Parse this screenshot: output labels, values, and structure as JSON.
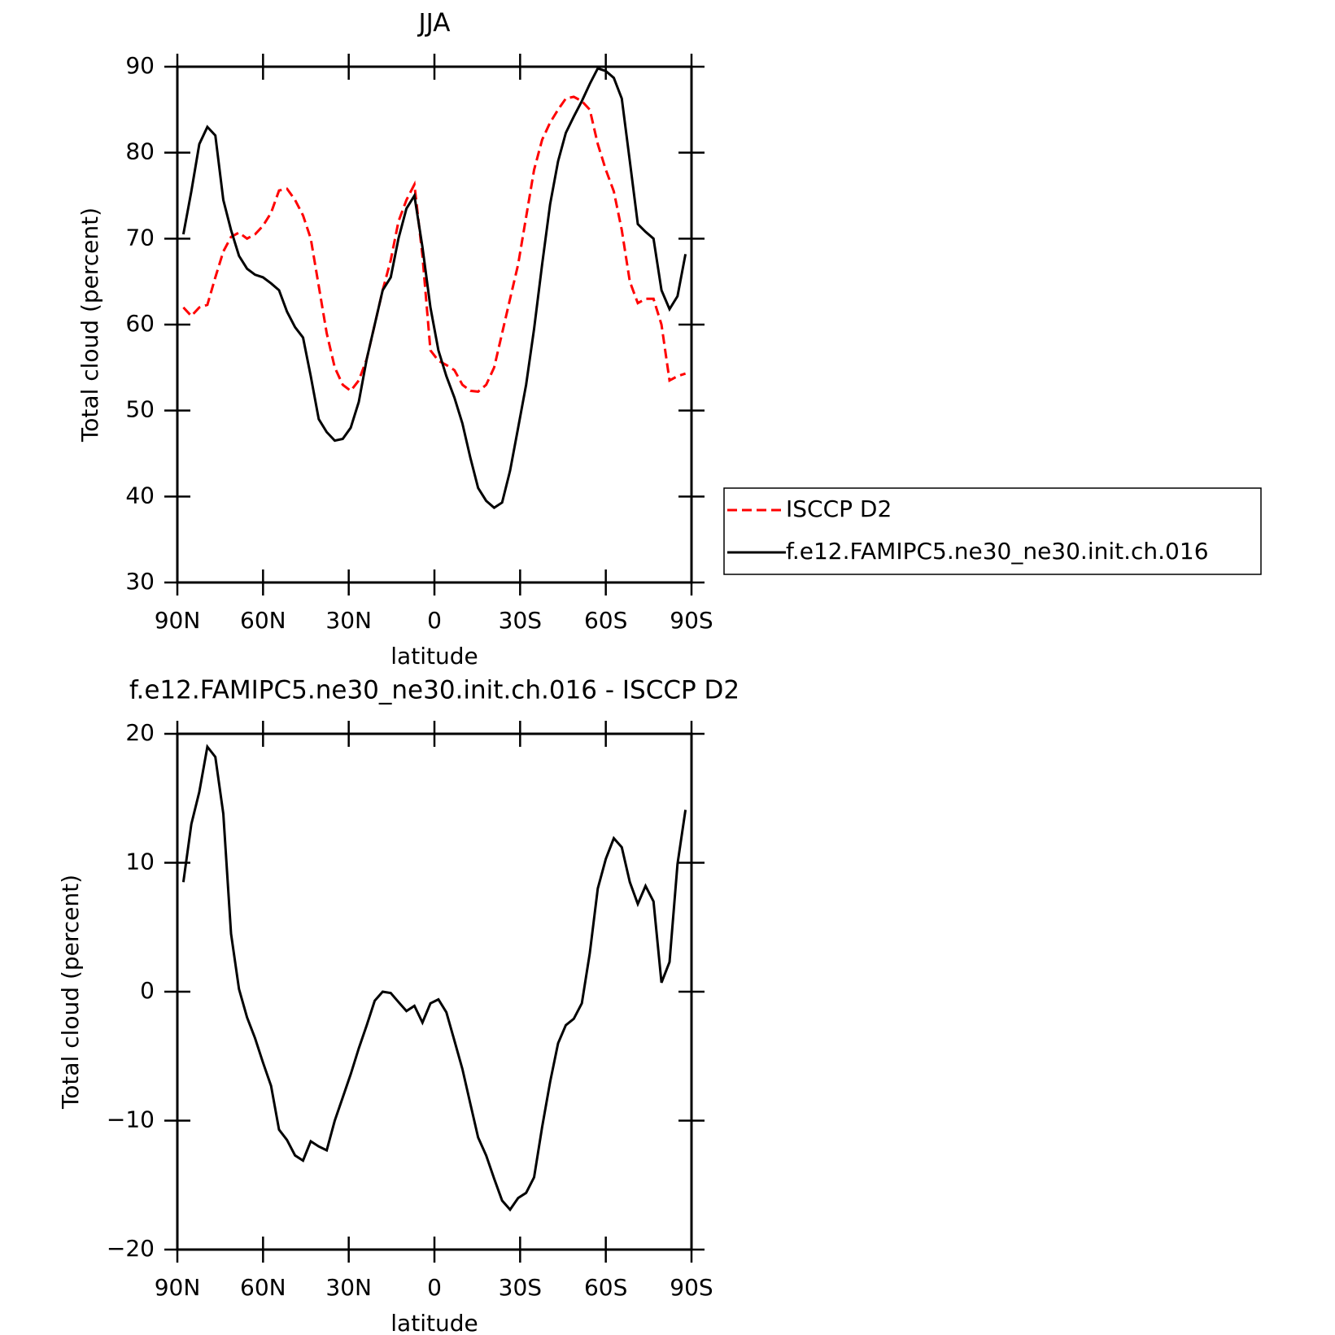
{
  "chart_data": [
    {
      "type": "line",
      "title": "JJA",
      "xlabel": "latitude",
      "ylabel": "Total cloud (percent)",
      "x": [
        87.9,
        85.1,
        82.3,
        79.5,
        76.7,
        73.9,
        71.2,
        68.4,
        65.6,
        62.8,
        60.0,
        57.2,
        54.4,
        51.6,
        48.8,
        46.0,
        43.3,
        40.5,
        37.7,
        34.9,
        32.1,
        29.3,
        26.5,
        23.7,
        20.9,
        18.1,
        15.3,
        12.6,
        9.8,
        7.0,
        4.2,
        1.4,
        -1.4,
        -4.2,
        -7.0,
        -9.8,
        -12.6,
        -15.3,
        -18.1,
        -20.9,
        -23.7,
        -26.5,
        -29.3,
        -32.1,
        -34.9,
        -37.7,
        -40.5,
        -43.3,
        -46.0,
        -48.8,
        -51.6,
        -54.4,
        -57.2,
        -60.0,
        -62.8,
        -65.6,
        -68.4,
        -71.2,
        -73.9,
        -76.7,
        -79.5,
        -82.3,
        -85.1,
        -87.9
      ],
      "series": [
        {
          "name": "ISCCP D2",
          "color": "#ff0000",
          "dash": true,
          "values": [
            62,
            61,
            62,
            62.3,
            65.5,
            68.5,
            70.2,
            70.7,
            70,
            70.5,
            71.5,
            73,
            75.6,
            75.8,
            74.5,
            72.7,
            70,
            64.5,
            59,
            55,
            53,
            52.3,
            53.5,
            56,
            60,
            64,
            67.5,
            72,
            74.5,
            76.3,
            68,
            57,
            55.8,
            55.3,
            54.7,
            53,
            52.3,
            52.2,
            53,
            55,
            59,
            63,
            67,
            72.5,
            78,
            81.5,
            83.5,
            85,
            86.3,
            86.5,
            86,
            85,
            81,
            78,
            75.5,
            71,
            65,
            62.5,
            63,
            63,
            60,
            53.5,
            54,
            54.3
          ]
        },
        {
          "name": "f.e12.FAMIPC5.ne30_ne30.init.ch.016",
          "color": "#000000",
          "dash": false,
          "values": [
            70.5,
            75.5,
            81,
            83,
            82,
            74.5,
            71,
            68,
            66.5,
            65.8,
            65.5,
            64.8,
            64,
            61.5,
            59.7,
            58.5,
            54,
            49,
            47.5,
            46.5,
            46.7,
            48,
            51,
            56,
            60,
            64,
            65.5,
            70,
            73.5,
            75,
            69,
            62,
            57,
            54,
            51.5,
            48.5,
            44.5,
            41,
            39.5,
            38.7,
            39.3,
            43,
            48,
            53,
            59.5,
            67,
            74,
            79,
            82.3,
            84.2,
            86,
            88,
            89.8,
            89.5,
            88.7,
            86.3,
            79,
            71.7,
            70.8,
            70,
            64,
            61.8,
            63.3,
            68.2
          ]
        }
      ],
      "xlim": [
        90,
        -90
      ],
      "xticks": [
        {
          "value": 90,
          "label": "90N"
        },
        {
          "value": 60,
          "label": "60N"
        },
        {
          "value": 30,
          "label": "30N"
        },
        0,
        {
          "value": -30,
          "label": "30S"
        },
        {
          "value": -60,
          "label": "60S"
        },
        {
          "value": -90,
          "label": "90S"
        }
      ],
      "ylim": [
        30,
        90
      ],
      "yticks": [
        30,
        40,
        50,
        60,
        70,
        80,
        90
      ]
    },
    {
      "type": "line",
      "title": "f.e12.FAMIPC5.ne30_ne30.init.ch.016 - ISCCP D2",
      "xlabel": "latitude",
      "ylabel": "Total cloud (percent)",
      "x": [
        87.9,
        85.1,
        82.3,
        79.5,
        76.7,
        73.9,
        71.2,
        68.4,
        65.6,
        62.8,
        60.0,
        57.2,
        54.4,
        51.6,
        48.8,
        46.0,
        43.3,
        40.5,
        37.7,
        34.9,
        32.1,
        29.3,
        26.5,
        23.7,
        20.9,
        18.1,
        15.3,
        12.6,
        9.8,
        7.0,
        4.2,
        1.4,
        -1.4,
        -4.2,
        -7.0,
        -9.8,
        -12.6,
        -15.3,
        -18.1,
        -20.9,
        -23.7,
        -26.5,
        -29.3,
        -32.1,
        -34.9,
        -37.7,
        -40.5,
        -43.3,
        -46.0,
        -48.8,
        -51.6,
        -54.4,
        -57.2,
        -60.0,
        -62.8,
        -65.6,
        -68.4,
        -71.2,
        -73.9,
        -76.7,
        -79.5,
        -82.3,
        -85.1,
        -87.9
      ],
      "series": [
        {
          "color": "#000000",
          "dash": false,
          "values": [
            8.5,
            13,
            15.5,
            19,
            18.2,
            13.8,
            4.5,
            0.2,
            -2,
            -3.6,
            -5.5,
            -7.3,
            -10.7,
            -11.5,
            -12.7,
            -13.1,
            -11.6,
            -12,
            -12.3,
            -10,
            -8.2,
            -6.4,
            -4.4,
            -2.6,
            -0.7,
            0,
            -0.1,
            -0.8,
            -1.5,
            -1.1,
            -2.4,
            -0.9,
            -0.6,
            -1.6,
            -3.8,
            -6,
            -8.7,
            -11.3,
            -12.7,
            -14.5,
            -16.2,
            -16.9,
            -16,
            -15.6,
            -14.4,
            -10.5,
            -7,
            -4,
            -2.6,
            -2.1,
            -0.9,
            3,
            8,
            10.3,
            11.9,
            11.2,
            8.5,
            6.8,
            8.2,
            7,
            0.7,
            2.3,
            9.9,
            14.1
          ]
        }
      ],
      "xlim": [
        90,
        -90
      ],
      "xticks": [
        {
          "value": 90,
          "label": "90N"
        },
        {
          "value": 60,
          "label": "60N"
        },
        {
          "value": 30,
          "label": "30N"
        },
        0,
        {
          "value": -30,
          "label": "30S"
        },
        {
          "value": -60,
          "label": "60S"
        },
        {
          "value": -90,
          "label": "90S"
        }
      ],
      "ylim": [
        -20,
        20
      ],
      "yticks": [
        {
          "value": -20,
          "label": "−20"
        },
        {
          "value": -10,
          "label": "−10"
        },
        0,
        10,
        20
      ]
    }
  ]
}
